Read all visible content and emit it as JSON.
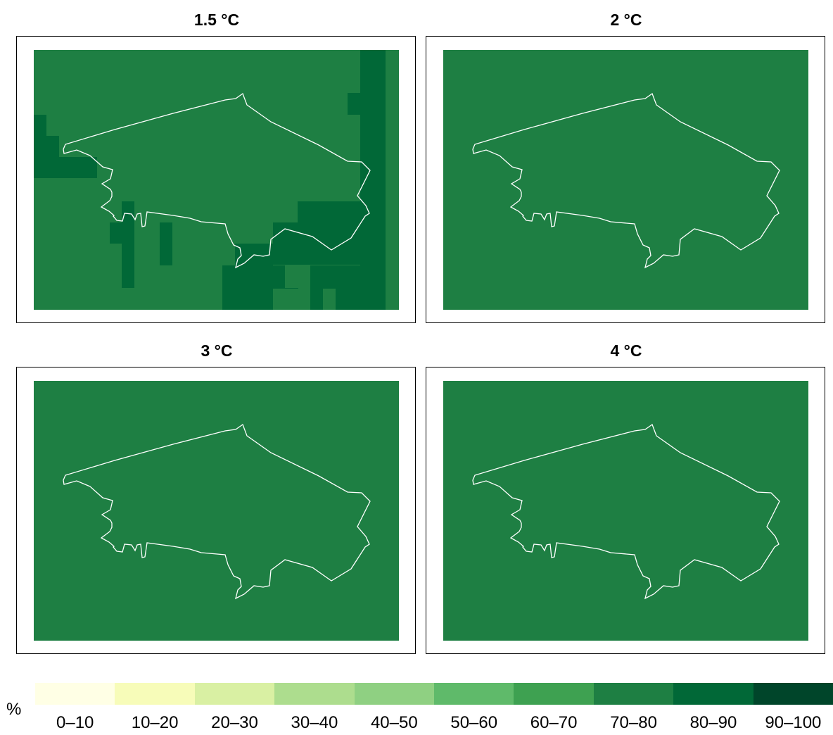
{
  "panels": [
    {
      "title": "1.5 °C"
    },
    {
      "title": "2 °C"
    },
    {
      "title": "3 °C"
    },
    {
      "title": "4 °C"
    }
  ],
  "legend": {
    "unit": "%",
    "bins": [
      {
        "label": "0–10",
        "color": "#ffffe5"
      },
      {
        "label": "10–20",
        "color": "#f7fcb9"
      },
      {
        "label": "20–30",
        "color": "#d9f0a3"
      },
      {
        "label": "30–40",
        "color": "#addd8e"
      },
      {
        "label": "40–50",
        "color": "#8fd082"
      },
      {
        "label": "50–60",
        "color": "#5fba6a"
      },
      {
        "label": "60–70",
        "color": "#3ea151"
      },
      {
        "label": "70–80",
        "color": "#1e7f43"
      },
      {
        "label": "80–90",
        "color": "#016837"
      },
      {
        "label": "90–100",
        "color": "#00452a"
      }
    ]
  },
  "map_colors": {
    "base": "#1e7f43",
    "high": "#016837",
    "boundary": "#ffffff"
  }
}
